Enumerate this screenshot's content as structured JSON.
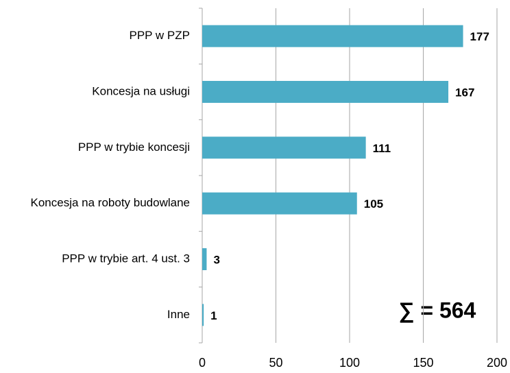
{
  "chart_data": {
    "type": "bar",
    "orientation": "horizontal",
    "categories": [
      "PPP w PZP",
      "Koncesja na usługi",
      "PPP w trybie koncesji",
      "Koncesja na roboty budowlane",
      "PPP w trybie art. 4 ust. 3",
      "Inne"
    ],
    "values": [
      177,
      167,
      111,
      105,
      3,
      1
    ],
    "color": "#4bacc6",
    "xlim": [
      0,
      200
    ],
    "xticks": [
      0,
      50,
      100,
      150,
      200
    ],
    "grid": true,
    "annotation": "∑ = 564"
  }
}
